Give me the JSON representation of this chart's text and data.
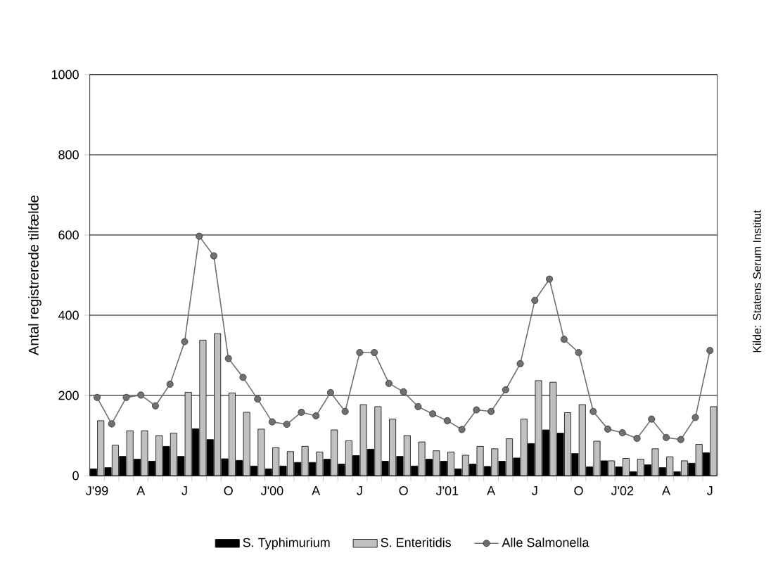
{
  "chart_data": {
    "type": "bar",
    "ylabel": "Antal registrerede tilfælde",
    "annotations": [
      "Kilde: Statens Serum Institut"
    ],
    "categories": [
      "J'99",
      null,
      null,
      "A",
      null,
      null,
      "J",
      null,
      null,
      "O",
      null,
      null,
      "J'00",
      null,
      null,
      "A",
      null,
      null,
      "J",
      null,
      null,
      "O",
      null,
      null,
      "J'01",
      null,
      null,
      "A",
      null,
      null,
      "J",
      null,
      null,
      "O",
      null,
      null,
      "J'02",
      null,
      null,
      "A",
      null,
      null,
      "J"
    ],
    "series": [
      {
        "name": "S. Typhimurium",
        "color": "#000000",
        "values": [
          17,
          20,
          48,
          41,
          36,
          73,
          48,
          117,
          90,
          42,
          38,
          24,
          17,
          24,
          33,
          33,
          41,
          29,
          50,
          66,
          36,
          48,
          24,
          41,
          36,
          17,
          29,
          23,
          36,
          44,
          80,
          114,
          106,
          55,
          22,
          37,
          22,
          10,
          27,
          20,
          10,
          31,
          57
        ]
      },
      {
        "name": "S. Enteritidis",
        "color": "#c0c0c0",
        "values": [
          137,
          76,
          112,
          112,
          100,
          106,
          208,
          338,
          354,
          206,
          158,
          116,
          70,
          60,
          73,
          59,
          114,
          87,
          177,
          172,
          141,
          100,
          84,
          62,
          59,
          51,
          73,
          67,
          92,
          141,
          237,
          233,
          157,
          177,
          86,
          37,
          43,
          41,
          67,
          47,
          37,
          78,
          172
        ]
      },
      {
        "name": "Alle Salmonella",
        "type": "line",
        "color": "#707070",
        "values": [
          195,
          129,
          195,
          201,
          174,
          228,
          334,
          597,
          548,
          292,
          245,
          191,
          134,
          128,
          158,
          149,
          207,
          160,
          307,
          307,
          230,
          209,
          172,
          154,
          137,
          115,
          164,
          160,
          214,
          279,
          437,
          490,
          340,
          307,
          160,
          116,
          107,
          93,
          141,
          95,
          90,
          145,
          312
        ]
      }
    ],
    "ylim": [
      0,
      1000
    ],
    "yticks": [
      0,
      200,
      400,
      600,
      800,
      1000
    ],
    "grid": "y",
    "legend": "bottom",
    "marker": "circle"
  }
}
